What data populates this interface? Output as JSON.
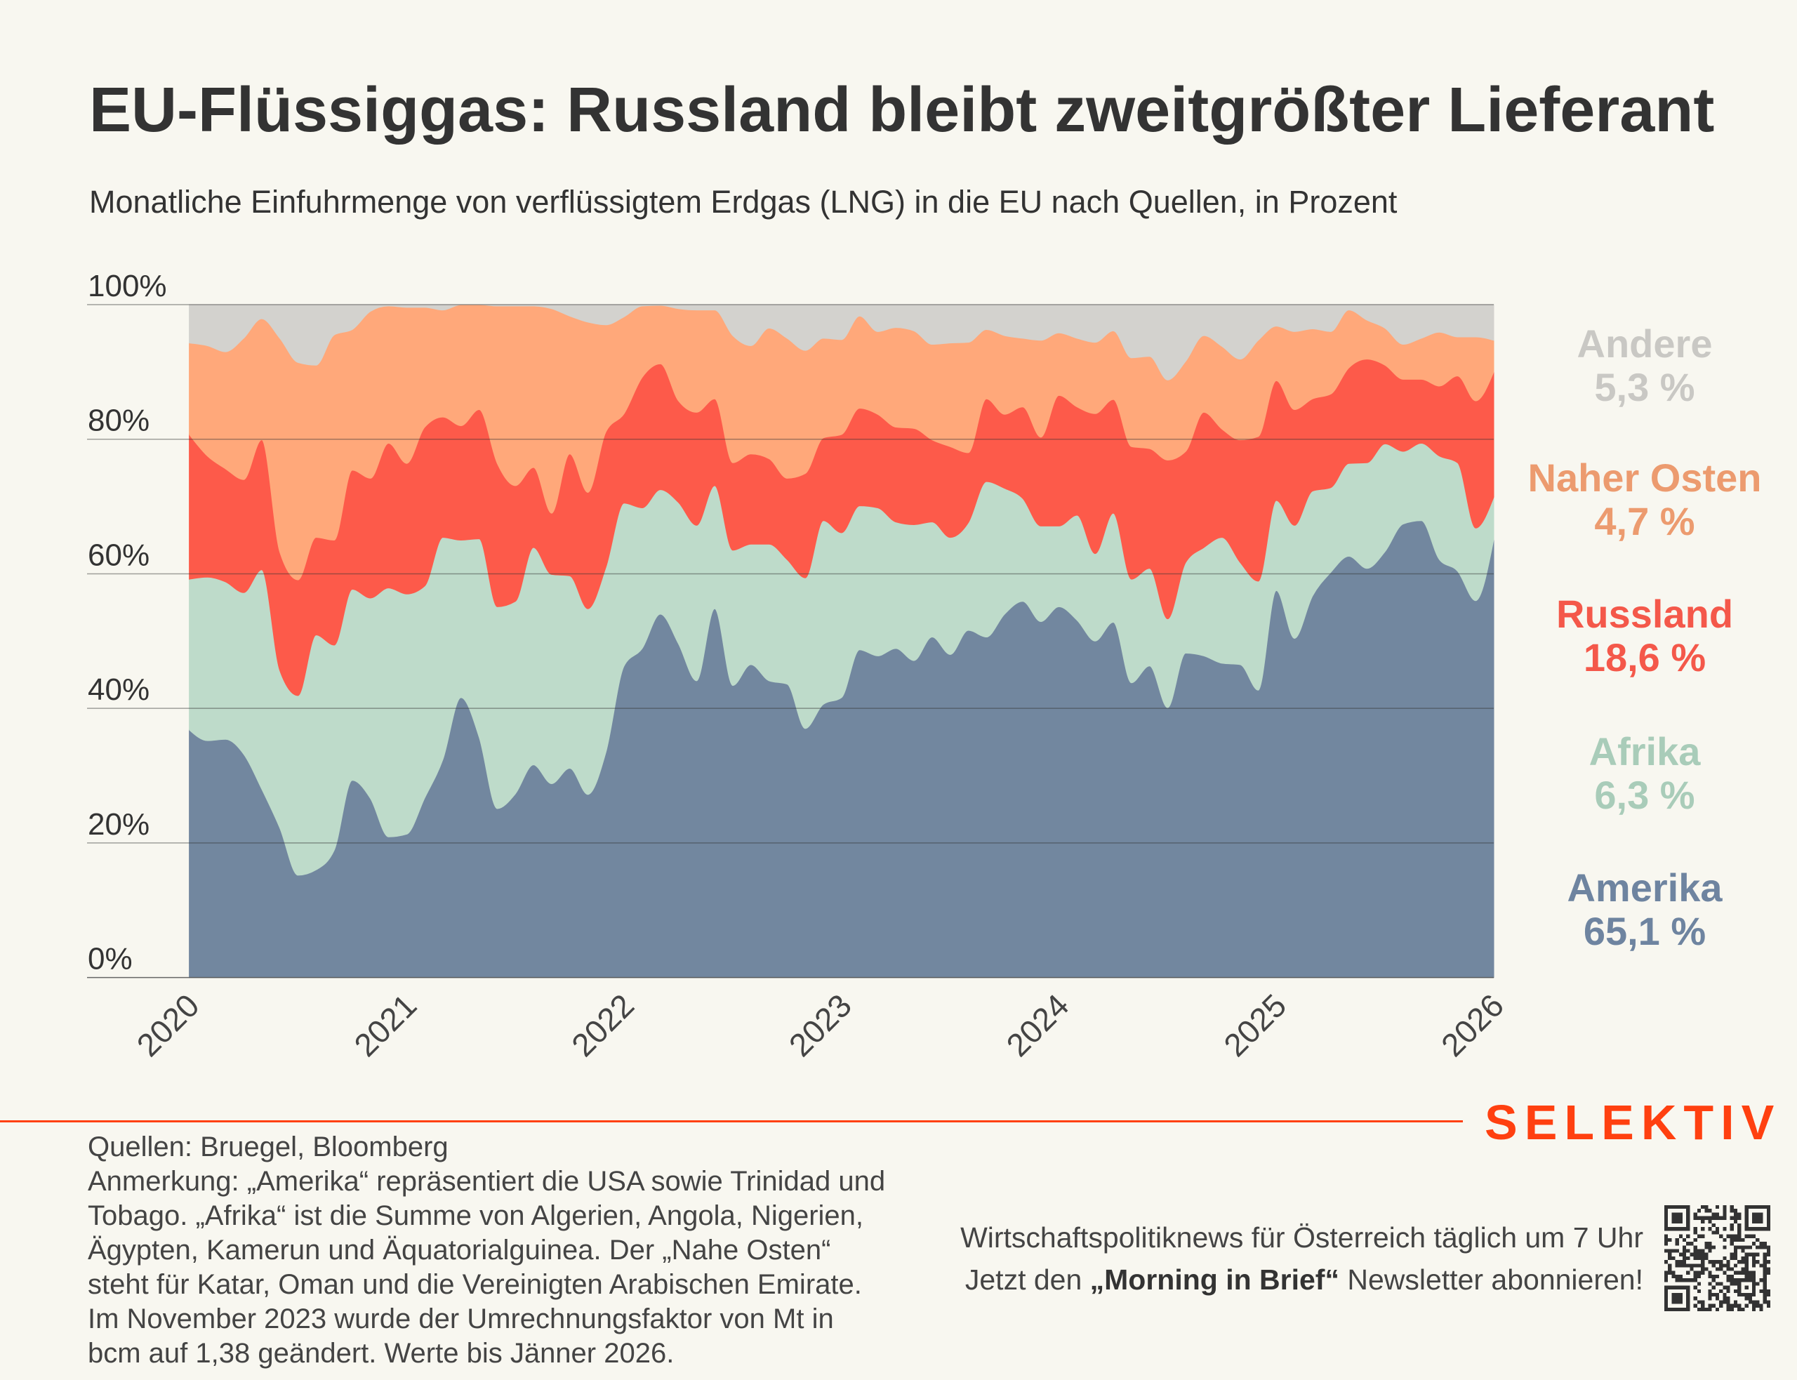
{
  "chart_data": {
    "type": "area",
    "stacked": true,
    "normalized": true,
    "title": "EU-Flüssiggas: Russland bleibt zweitgrößter Lieferant",
    "subtitle": "Monatliche Einfuhrmenge von verflüssigtem Erdgas (LNG) in die EU nach Quellen, in Prozent",
    "xlabel": "",
    "ylabel": "",
    "ylim": [
      0,
      100
    ],
    "y_ticks": [
      100,
      80,
      60,
      40,
      20,
      0
    ],
    "y_tick_labels": [
      "100%",
      "80%",
      "60%",
      "40%",
      "20%",
      "0%"
    ],
    "x_tick_values": [
      "2020-01",
      "2021-01",
      "2022-01",
      "2023-01",
      "2024-01",
      "2025-01",
      "2026-01"
    ],
    "x_tick_labels": [
      "2020",
      "2021",
      "2022",
      "2023",
      "2024",
      "2025",
      "2026"
    ],
    "grid": true,
    "legend_position": "right",
    "x": [
      "2020-01",
      "2020-02",
      "2020-03",
      "2020-04",
      "2020-05",
      "2020-06",
      "2020-07",
      "2020-08",
      "2020-09",
      "2020-10",
      "2020-11",
      "2020-12",
      "2021-01",
      "2021-02",
      "2021-03",
      "2021-04",
      "2021-05",
      "2021-06",
      "2021-07",
      "2021-08",
      "2021-09",
      "2021-10",
      "2021-11",
      "2021-12",
      "2022-01",
      "2022-02",
      "2022-03",
      "2022-04",
      "2022-05",
      "2022-06",
      "2022-07",
      "2022-08",
      "2022-09",
      "2022-10",
      "2022-11",
      "2022-12",
      "2023-01",
      "2023-02",
      "2023-03",
      "2023-04",
      "2023-05",
      "2023-06",
      "2023-07",
      "2023-08",
      "2023-09",
      "2023-10",
      "2023-11",
      "2023-12",
      "2024-01",
      "2024-02",
      "2024-03",
      "2024-04",
      "2024-05",
      "2024-06",
      "2024-07",
      "2024-08",
      "2024-09",
      "2024-10",
      "2024-11",
      "2024-12",
      "2025-01",
      "2025-02",
      "2025-03",
      "2025-04",
      "2025-05",
      "2025-06",
      "2025-07",
      "2025-08",
      "2025-09",
      "2025-10",
      "2025-11",
      "2025-12",
      "2026-01"
    ],
    "series": [
      {
        "name": "Amerika",
        "color": "#72879f",
        "label_color": "#6e84a0",
        "end_label": "65,1 %",
        "values": [
          36.8,
          35.2,
          35.4,
          33.2,
          28.0,
          22.2,
          15.2,
          16.0,
          18.9,
          29.3,
          26.6,
          20.9,
          21.3,
          26.7,
          32.4,
          41.6,
          35.7,
          25.1,
          27.3,
          31.6,
          28.8,
          31.1,
          27.2,
          33.5,
          46.3,
          48.9,
          54.0,
          49.6,
          44.1,
          54.8,
          43.4,
          46.5,
          44.1,
          43.6,
          37.0,
          40.6,
          41.6,
          48.7,
          47.8,
          48.9,
          47.1,
          50.6,
          48.0,
          51.6,
          50.6,
          54.0,
          55.9,
          52.9,
          55.1,
          53.1,
          50.0,
          52.8,
          43.8,
          46.3,
          40.1,
          48.2,
          47.8,
          46.7,
          46.5,
          42.7,
          57.5,
          50.4,
          56.7,
          60.2,
          62.6,
          60.8,
          63.3,
          67.4,
          67.9,
          62.1,
          60.4,
          56.0,
          65.1
        ]
      },
      {
        "name": "Afrika",
        "color": "#bedbca",
        "label_color": "#a9ccb9",
        "end_label": "6,3 %",
        "values": [
          22.4,
          24.3,
          23.4,
          24.0,
          32.6,
          23.4,
          26.7,
          34.9,
          30.5,
          28.4,
          29.8,
          37.0,
          35.7,
          31.5,
          33.0,
          23.4,
          29.5,
          30.0,
          28.6,
          32.3,
          31.1,
          28.6,
          27.6,
          27.5,
          24.2,
          20.9,
          18.5,
          21.0,
          23.1,
          18.3,
          20.1,
          17.9,
          20.3,
          18.5,
          22.4,
          27.3,
          24.5,
          21.4,
          22.0,
          18.8,
          20.2,
          17.1,
          17.4,
          16.0,
          23.1,
          18.7,
          15.3,
          14.2,
          12.0,
          15.6,
          13.0,
          16.2,
          15.4,
          14.5,
          13.2,
          13.5,
          16.1,
          18.7,
          15.2,
          16.2,
          13.4,
          16.8,
          15.6,
          12.6,
          13.8,
          15.7,
          16.0,
          10.8,
          11.5,
          15.4,
          16.1,
          10.8,
          6.3
        ]
      },
      {
        "name": "Russland",
        "color": "#fd5a4a",
        "label_color": "#f4584a",
        "end_label": "18,6 %",
        "values": [
          21.5,
          18.0,
          16.8,
          16.8,
          19.3,
          17.6,
          17.2,
          14.5,
          15.6,
          17.7,
          17.8,
          21.5,
          19.4,
          23.6,
          17.9,
          17.0,
          19.2,
          21.3,
          17.2,
          11.9,
          9.1,
          18.1,
          17.3,
          20.1,
          13.3,
          19.4,
          18.7,
          15.1,
          16.8,
          12.9,
          13.0,
          13.4,
          12.7,
          12.1,
          15.5,
          12.3,
          14.6,
          14.5,
          13.9,
          14.1,
          14.3,
          12.2,
          13.5,
          10.4,
          12.3,
          11.0,
          13.6,
          13.2,
          19.4,
          16.1,
          20.8,
          16.9,
          19.7,
          17.8,
          23.6,
          16.5,
          20.1,
          16.1,
          18.2,
          21.5,
          17.8,
          17.2,
          13.7,
          13.9,
          14.2,
          15.4,
          11.7,
          10.7,
          9.5,
          10.4,
          12.9,
          18.9,
          18.6
        ]
      },
      {
        "name": "Naher Osten",
        "color": "#ffa87a",
        "label_color": "#ec9b6f",
        "end_label": "4,7 %",
        "values": [
          13.6,
          16.4,
          17.4,
          21.0,
          18.0,
          31.8,
          32.3,
          25.6,
          30.5,
          20.9,
          24.8,
          20.4,
          23.2,
          17.8,
          15.9,
          18.0,
          15.6,
          23.4,
          26.7,
          24.0,
          30.4,
          20.5,
          25.3,
          15.9,
          14.4,
          10.6,
          8.7,
          13.7,
          15.2,
          13.2,
          18.9,
          16.1,
          19.4,
          20.8,
          18.3,
          14.8,
          14.1,
          13.7,
          12.3,
          14.8,
          14.5,
          14.2,
          15.4,
          16.4,
          10.3,
          11.7,
          10.2,
          14.4,
          9.3,
          10.2,
          10.6,
          10.2,
          13.2,
          13.7,
          11.9,
          13.4,
          11.4,
          12.3,
          12.0,
          14.3,
          8.1,
          11.6,
          10.4,
          9.3,
          8.6,
          5.8,
          5.5,
          5.2,
          6.1,
          8.0,
          5.8,
          9.5,
          4.7
        ]
      },
      {
        "name": "Andere",
        "color": "#d3d2ce",
        "label_color": "#c9c8c4",
        "end_label": "5,3 %",
        "values": [
          5.7,
          6.1,
          7.0,
          5.0,
          2.1,
          5.0,
          8.6,
          9.0,
          4.5,
          3.7,
          1.0,
          0.2,
          0.4,
          0.4,
          0.8,
          0.0,
          0.0,
          0.2,
          0.2,
          0.2,
          0.6,
          1.7,
          2.6,
          3.0,
          1.8,
          0.2,
          0.1,
          0.6,
          0.8,
          0.8,
          4.6,
          6.1,
          3.5,
          5.0,
          6.8,
          5.0,
          5.2,
          1.7,
          4.0,
          3.4,
          3.9,
          5.9,
          5.7,
          5.6,
          3.7,
          4.6,
          5.0,
          5.3,
          4.2,
          5.0,
          5.6,
          3.9,
          7.9,
          7.7,
          11.2,
          8.4,
          4.6,
          6.2,
          8.1,
          5.3,
          3.2,
          4.0,
          3.6,
          4.0,
          0.8,
          2.3,
          3.5,
          5.9,
          5.0,
          4.1,
          4.8,
          4.8,
          5.3
        ]
      }
    ]
  },
  "footer": {
    "source": "Quellen: Bruegel, Bloomberg",
    "note_lines": [
      "Anmerkung: „Amerika“ repräsentiert die USA sowie Trinidad und",
      "Tobago. „Afrika“ ist die Summe von Algerien, Angola, Nigerien,",
      "Ägypten, Kamerun und Äquatorialguinea. Der „Nahe Osten“",
      "steht für Katar, Oman und die Vereinigten Arabischen Emirate.",
      "Im November 2023 wurde der Umrechnungsfaktor von Mt in",
      "bcm auf 1,38 geändert. Werte bis Jänner 2026."
    ]
  },
  "brand": {
    "name": "SELEKTIV",
    "color": "#ff4010"
  },
  "newsletter": {
    "line1": "Wirtschaftspolitiknews für Österreich täglich um 7 Uhr",
    "line2_prefix": "Jetzt den ",
    "line2_bold": "„Morning in Brief“",
    "line2_suffix": " Newsletter abonnieren!",
    "qr_icon": "qr-code"
  },
  "colors": {
    "background": "#f8f7f0",
    "text": "#333333",
    "accent": "#ff4010"
  }
}
